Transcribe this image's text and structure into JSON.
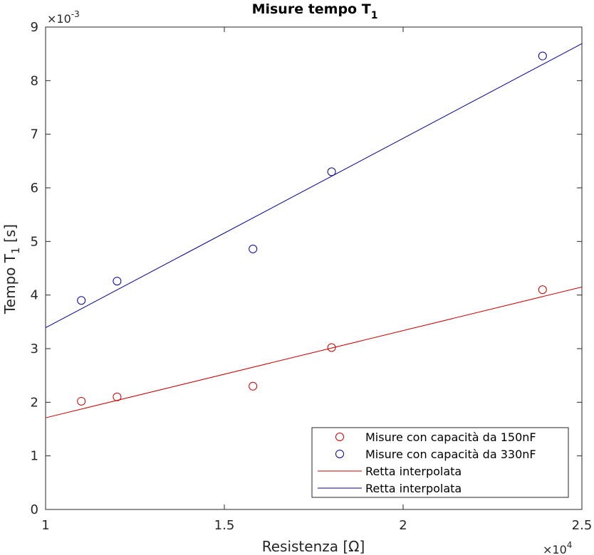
{
  "chart_data": {
    "type": "scatter",
    "title": "Misure tempo T",
    "title_subscript": "1",
    "xlabel": "Resistenza [Ω]",
    "ylabel": "Tempo T",
    "ylabel_subscript": "1",
    "ylabel_unit": " [s]",
    "x_multiplier": "×10",
    "x_multiplier_exp": "4",
    "y_multiplier": "×10",
    "y_multiplier_exp": "-3",
    "xlim": [
      1,
      2.5
    ],
    "ylim": [
      0,
      9
    ],
    "x_ticks": [
      1,
      1.5,
      2,
      2.5
    ],
    "x_tick_labels": [
      "1",
      "1.5",
      "2",
      "2.5"
    ],
    "y_ticks": [
      0,
      1,
      2,
      3,
      4,
      5,
      6,
      7,
      8,
      9
    ],
    "y_tick_labels": [
      "0",
      "1",
      "2",
      "3",
      "4",
      "5",
      "6",
      "7",
      "8",
      "9"
    ],
    "grid": false,
    "legend_position": "bottom-right",
    "series": [
      {
        "name": "Misure con capacità da 150nF",
        "kind": "markers",
        "color": "#cc0000",
        "x": [
          1.1,
          1.2,
          1.58,
          1.8,
          2.39
        ],
        "y": [
          2.02,
          2.1,
          2.3,
          3.02,
          4.1
        ]
      },
      {
        "name": "Misure con capacità da 330nF",
        "kind": "markers",
        "color": "#000099",
        "x": [
          1.1,
          1.2,
          1.58,
          1.8,
          2.39
        ],
        "y": [
          3.9,
          4.26,
          4.86,
          6.3,
          8.46
        ]
      },
      {
        "name": "Retta interpolata",
        "kind": "line",
        "color": "#cc0000",
        "x": [
          1,
          2.5
        ],
        "y": [
          1.71,
          4.15
        ]
      },
      {
        "name": "Retta interpolata",
        "kind": "line",
        "color": "#000099",
        "x": [
          1,
          2.5
        ],
        "y": [
          3.39,
          8.69
        ]
      }
    ]
  }
}
